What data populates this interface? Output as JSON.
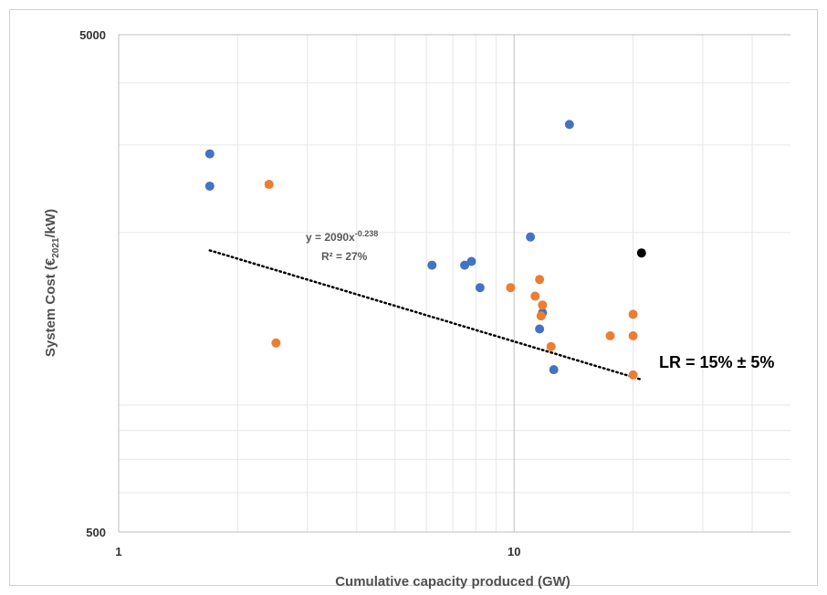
{
  "chart_data": {
    "type": "scatter",
    "x_scale": "log",
    "y_scale": "log",
    "xlim": [
      1,
      50
    ],
    "ylim": [
      500,
      5000
    ],
    "x_ticks": [
      {
        "value": 1,
        "label": "1"
      },
      {
        "value": 10,
        "label": "10"
      }
    ],
    "y_ticks": [
      {
        "value": 500,
        "label": "500"
      },
      {
        "value": 5000,
        "label": "5000"
      }
    ],
    "xlabel": "Cumulative capacity produced  (GW)",
    "ylabel_prefix": "System Cost (€",
    "ylabel_sub": "2021",
    "ylabel_suffix": "/kW)",
    "grid": true,
    "series": [
      {
        "color": "#4472C4",
        "points": [
          {
            "x": 1.7,
            "y": 2880
          },
          {
            "x": 1.7,
            "y": 2480
          },
          {
            "x": 6.2,
            "y": 1720
          },
          {
            "x": 7.5,
            "y": 1720
          },
          {
            "x": 7.8,
            "y": 1750
          },
          {
            "x": 8.2,
            "y": 1550
          },
          {
            "x": 11,
            "y": 1960
          },
          {
            "x": 11.6,
            "y": 1280
          },
          {
            "x": 11.8,
            "y": 1380
          },
          {
            "x": 12.6,
            "y": 1060
          },
          {
            "x": 13.8,
            "y": 3300
          }
        ]
      },
      {
        "color": "#ED7D31",
        "points": [
          {
            "x": 2.4,
            "y": 2500
          },
          {
            "x": 2.5,
            "y": 1200
          },
          {
            "x": 9.8,
            "y": 1550
          },
          {
            "x": 11.3,
            "y": 1490
          },
          {
            "x": 11.6,
            "y": 1610
          },
          {
            "x": 11.8,
            "y": 1430
          },
          {
            "x": 11.7,
            "y": 1360
          },
          {
            "x": 12.4,
            "y": 1180
          },
          {
            "x": 17.5,
            "y": 1240
          },
          {
            "x": 20,
            "y": 1370
          },
          {
            "x": 20,
            "y": 1240
          },
          {
            "x": 20,
            "y": 1035
          }
        ]
      },
      {
        "color": "#000000",
        "points": [
          {
            "x": 21,
            "y": 1820
          }
        ]
      }
    ],
    "trendline": {
      "style": "dotted",
      "color": "#000000",
      "a": 2090,
      "b": -0.238,
      "x_range": [
        1.7,
        21
      ],
      "equation_prefix": "y = 2090x",
      "equation_exp": "-0.238",
      "r2_label": "R² = 27%"
    },
    "annotation": "LR = 15%  ± 5%"
  }
}
